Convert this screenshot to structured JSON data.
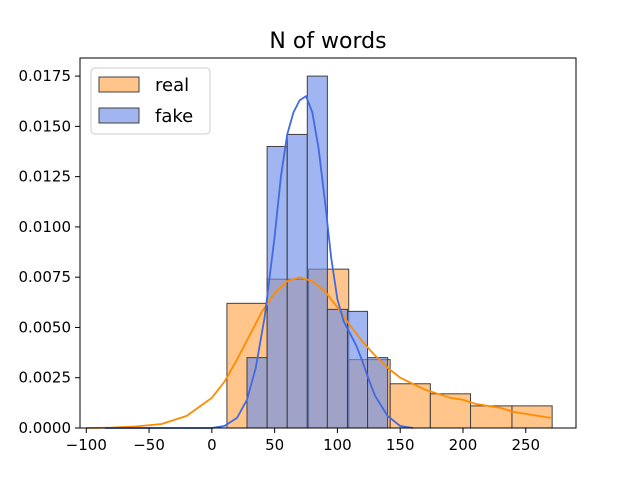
{
  "chart_data": {
    "type": "histogram",
    "title": "N of words",
    "xlabel": "",
    "ylabel": "",
    "xlim": [
      -105,
      290
    ],
    "ylim": [
      0,
      0.0184
    ],
    "x_ticks": [
      -100,
      -50,
      0,
      50,
      100,
      150,
      200,
      250
    ],
    "x_tick_labels": [
      "−100",
      "−50",
      "0",
      "50",
      "100",
      "150",
      "200",
      "250"
    ],
    "y_ticks": [
      0.0,
      0.0025,
      0.005,
      0.0075,
      0.01,
      0.0125,
      0.015,
      0.0175
    ],
    "y_tick_labels": [
      "0.0000",
      "0.0025",
      "0.0050",
      "0.0075",
      "0.0100",
      "0.0125",
      "0.0150",
      "0.0175"
    ],
    "grid": false,
    "legend_position": "top-left",
    "series": [
      {
        "name": "real",
        "color": "#ffa64d",
        "line_color": "#ff8c00",
        "bin_edges": [
          12,
          44,
          77,
          109,
          142,
          174,
          206,
          239,
          271
        ],
        "bin_heights": [
          0.0062,
          0.0074,
          0.0079,
          0.0034,
          0.0022,
          0.0017,
          0.0011,
          0.0011
        ],
        "kde": [
          [
            -100,
            0.0
          ],
          [
            -80,
            2e-05
          ],
          [
            -60,
            8e-05
          ],
          [
            -40,
            0.0002
          ],
          [
            -20,
            0.0006
          ],
          [
            0,
            0.0015
          ],
          [
            10,
            0.0023
          ],
          [
            20,
            0.0034
          ],
          [
            30,
            0.0046
          ],
          [
            40,
            0.0058
          ],
          [
            50,
            0.0067
          ],
          [
            60,
            0.0073
          ],
          [
            70,
            0.0075
          ],
          [
            80,
            0.0073
          ],
          [
            90,
            0.0068
          ],
          [
            100,
            0.006
          ],
          [
            110,
            0.0051
          ],
          [
            120,
            0.0043
          ],
          [
            130,
            0.0036
          ],
          [
            140,
            0.003
          ],
          [
            150,
            0.0025
          ],
          [
            160,
            0.0022
          ],
          [
            170,
            0.0019
          ],
          [
            180,
            0.0017
          ],
          [
            190,
            0.0015
          ],
          [
            200,
            0.0014
          ],
          [
            210,
            0.0012
          ],
          [
            220,
            0.0011
          ],
          [
            230,
            0.001
          ],
          [
            240,
            0.0008
          ],
          [
            250,
            0.0007
          ],
          [
            260,
            0.0006
          ],
          [
            270,
            0.0005
          ]
        ]
      },
      {
        "name": "fake",
        "color": "#6e8fe8",
        "line_color": "#4169e1",
        "bin_edges": [
          28,
          44,
          60,
          76,
          92,
          108,
          124,
          140
        ],
        "bin_heights": [
          0.0035,
          0.014,
          0.0146,
          0.0175,
          0.0059,
          0.0058,
          0.0035
        ],
        "kde": [
          [
            -85,
            0.0
          ],
          [
            0,
            0.0
          ],
          [
            10,
            0.0001
          ],
          [
            20,
            0.0005
          ],
          [
            28,
            0.0014
          ],
          [
            35,
            0.003
          ],
          [
            42,
            0.0055
          ],
          [
            50,
            0.0095
          ],
          [
            55,
            0.0125
          ],
          [
            60,
            0.0146
          ],
          [
            65,
            0.0157
          ],
          [
            70,
            0.0163
          ],
          [
            75,
            0.0165
          ],
          [
            80,
            0.0157
          ],
          [
            85,
            0.0139
          ],
          [
            90,
            0.0113
          ],
          [
            95,
            0.0085
          ],
          [
            100,
            0.0064
          ],
          [
            105,
            0.0053
          ],
          [
            110,
            0.0047
          ],
          [
            115,
            0.0041
          ],
          [
            120,
            0.0033
          ],
          [
            125,
            0.0024
          ],
          [
            130,
            0.0016
          ],
          [
            140,
            0.0006
          ],
          [
            150,
            0.0001
          ],
          [
            160,
            0.0
          ]
        ]
      }
    ]
  }
}
